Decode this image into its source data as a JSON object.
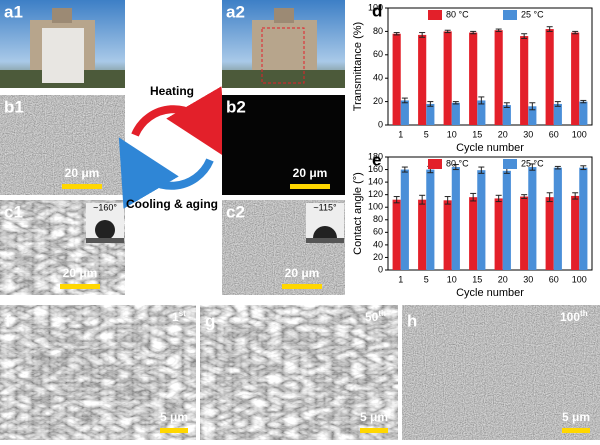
{
  "chart_data": [
    {
      "type": "bar",
      "label": "d",
      "ylabel": "Transmittance (%)",
      "xlabel": "Cycle number",
      "categories": [
        "1",
        "5",
        "10",
        "15",
        "20",
        "30",
        "60",
        "100"
      ],
      "series": [
        {
          "name": "80 °C",
          "color": "#e3202a",
          "values": [
            78,
            77,
            80,
            79,
            81,
            76,
            82,
            79
          ],
          "errors": [
            1,
            2,
            1,
            1,
            1,
            2,
            2,
            1
          ]
        },
        {
          "name": "25 °C",
          "color": "#4a8fd8",
          "values": [
            21,
            18,
            19,
            21,
            17,
            16,
            18,
            20
          ],
          "errors": [
            2,
            2,
            1,
            3,
            2,
            3,
            2,
            1
          ]
        }
      ],
      "ylim": [
        0,
        100
      ],
      "yticks": [
        0,
        20,
        40,
        60,
        80,
        100
      ],
      "legend": "top"
    },
    {
      "type": "bar",
      "label": "e",
      "ylabel": "Contact angle (°)",
      "xlabel": "Cycle number",
      "categories": [
        "1",
        "5",
        "10",
        "15",
        "20",
        "30",
        "60",
        "100"
      ],
      "series": [
        {
          "name": "80 °C",
          "color": "#e3202a",
          "values": [
            112,
            112,
            111,
            116,
            114,
            117,
            116,
            118
          ],
          "errors": [
            5,
            7,
            6,
            6,
            5,
            3,
            7,
            5
          ]
        },
        {
          "name": "25 °C",
          "color": "#4a8fd8",
          "values": [
            160,
            160,
            164,
            159,
            158,
            164,
            163,
            163
          ],
          "errors": [
            4,
            5,
            4,
            5,
            4,
            5,
            2,
            3
          ]
        }
      ],
      "ylim": [
        0,
        180
      ],
      "yticks": [
        0,
        20,
        40,
        60,
        80,
        100,
        120,
        140,
        160,
        180
      ],
      "legend": "top"
    }
  ],
  "panels": [
    {
      "label": "a1"
    },
    {
      "label": "b1",
      "scale": "20 μm"
    },
    {
      "label": "c1",
      "scale": "20 μm",
      "angle": "~160°"
    },
    {
      "label": "a2"
    },
    {
      "label": "b2",
      "scale": "20 μm"
    },
    {
      "label": "c2",
      "scale": "20 μm",
      "angle": "~115°"
    },
    {
      "label": "f",
      "scale": "5 μm",
      "cycle": "1",
      "sup": "st"
    },
    {
      "label": "g",
      "scale": "5 μm",
      "cycle": "50",
      "sup": "th"
    },
    {
      "label": "h",
      "scale": "5 μm",
      "cycle": "100",
      "sup": "th"
    }
  ],
  "arrows": {
    "heating": "Heating",
    "cooling": "Cooling & aging"
  }
}
